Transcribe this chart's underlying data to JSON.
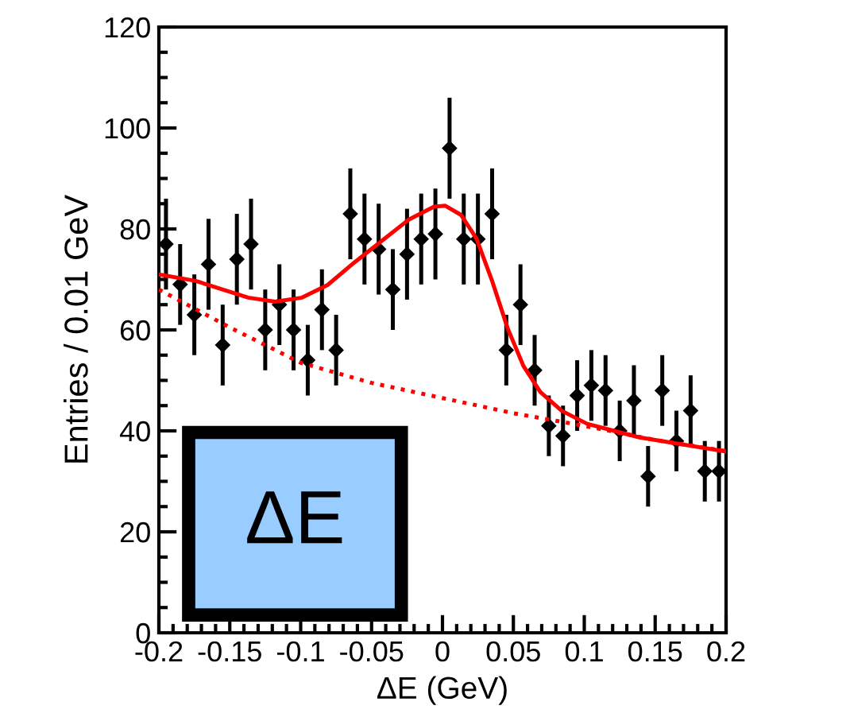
{
  "chart_data": {
    "type": "scatter",
    "xlabel": "ΔE (GeV)",
    "ylabel": "Entries / 0.01 GeV",
    "annotations": [
      "ΔE"
    ],
    "xlim": [
      -0.2,
      0.2
    ],
    "ylim": [
      0,
      120
    ],
    "xticks": [
      {
        "value": -0.2,
        "label": "-0.2"
      },
      {
        "value": -0.15,
        "label": "-0.15"
      },
      {
        "value": -0.1,
        "label": "-0.1"
      },
      {
        "value": -0.05,
        "label": "-0.05"
      },
      0,
      {
        "value": 0.05,
        "label": "0.05"
      },
      {
        "value": 0.1,
        "label": "0.1"
      },
      {
        "value": 0.15,
        "label": "0.15"
      },
      {
        "value": 0.2,
        "label": "0.2"
      }
    ],
    "yticks": [
      0,
      20,
      40,
      60,
      80,
      100,
      120
    ],
    "grid": false,
    "series": [
      {
        "color": "#000000",
        "marker": "diamond",
        "x": [
          -0.195,
          -0.185,
          -0.175,
          -0.165,
          -0.155,
          -0.145,
          -0.135,
          -0.125,
          -0.115,
          -0.105,
          -0.095,
          -0.085,
          -0.075,
          -0.065,
          -0.055,
          -0.045,
          -0.035,
          -0.025,
          -0.015,
          -0.005,
          0.005,
          0.015,
          0.025,
          0.035,
          0.045,
          0.055,
          0.065,
          0.075,
          0.085,
          0.095,
          0.105,
          0.115,
          0.125,
          0.135,
          0.145,
          0.155,
          0.165,
          0.175,
          0.185,
          0.195
        ],
        "values": [
          77,
          69,
          63,
          73,
          57,
          74,
          77,
          60,
          65,
          60,
          54,
          64,
          56,
          83,
          78,
          76,
          68,
          75,
          78,
          79,
          96,
          78,
          78,
          83,
          56,
          65,
          52,
          41,
          39,
          47,
          49,
          48,
          40,
          46,
          31,
          48,
          38,
          44,
          32,
          32
        ],
        "errors": [
          9,
          8,
          8,
          9,
          8,
          9,
          9,
          8,
          8,
          8,
          7,
          8,
          7,
          9,
          9,
          9,
          8,
          9,
          9,
          9,
          10,
          9,
          9,
          9,
          7,
          8,
          7,
          6,
          6,
          7,
          7,
          7,
          6,
          7,
          6,
          7,
          6,
          7,
          6,
          6
        ]
      },
      {
        "type": "line",
        "color": "#ff0000",
        "line_style": "solid",
        "x": [
          -0.2,
          -0.174,
          -0.137,
          -0.118,
          -0.099,
          -0.081,
          -0.062,
          -0.043,
          -0.024,
          -0.006,
          0.002,
          0.013,
          0.024,
          0.035,
          0.046,
          0.057,
          0.069,
          0.084,
          0.102,
          0.139,
          0.2
        ],
        "values": [
          71,
          69.7,
          66.4,
          65.6,
          66.4,
          68.9,
          73.4,
          77.6,
          81.8,
          84.4,
          84.6,
          82.8,
          78.1,
          69.7,
          60.3,
          52.9,
          47.7,
          44,
          41.4,
          38.7,
          35.9
        ]
      },
      {
        "type": "line",
        "color": "#ff0000",
        "line_style": "dotted",
        "x": [
          -0.2,
          -0.15,
          -0.1,
          -0.05,
          0,
          0.05,
          0.1,
          0.15,
          0.2
        ],
        "values": [
          68,
          60.5,
          53.5,
          49.5,
          46.5,
          43.5,
          41,
          38.2,
          36
        ]
      }
    ]
  }
}
